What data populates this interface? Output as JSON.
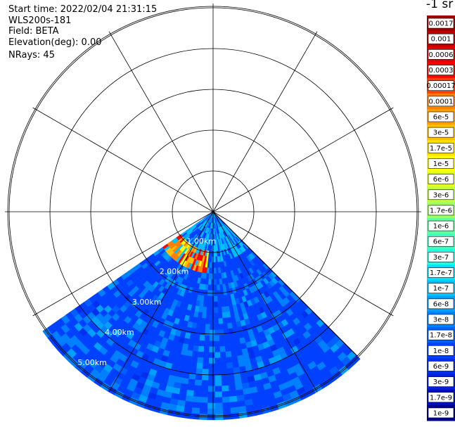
{
  "header": {
    "start_time": "Start time: 2022/02/04 21:31:15",
    "instrument": "WLS200s-181",
    "field": "Field: BETA",
    "elevation": "Elevation(deg): 0.00",
    "nrays": "NRays: 45"
  },
  "colorbar": {
    "unit_label": "-1 sr",
    "labels": [
      "0.0017",
      "0.001",
      "0.0006",
      "0.0003",
      "0.00017",
      "0.0001",
      "6e-5",
      "3e-5",
      "1.7e-5",
      "1e-5",
      "6e-6",
      "3e-6",
      "1.7e-6",
      "1e-6",
      "6e-7",
      "3e-7",
      "1.7e-7",
      "1e-7",
      "6e-8",
      "3e-8",
      "1.7e-8",
      "1e-8",
      "6e-9",
      "3e-9",
      "1.7e-9",
      "1e-9"
    ],
    "colors": [
      "#a00000",
      "#c00000",
      "#e00000",
      "#ff0000",
      "#ff4000",
      "#ff8000",
      "#ffa000",
      "#ffc000",
      "#ffe000",
      "#ffff00",
      "#e0ff20",
      "#c0ff40",
      "#a0ff60",
      "#60ffa0",
      "#40ffc0",
      "#20ffe0",
      "#00e0ff",
      "#00c0ff",
      "#00a0ff",
      "#0080ff",
      "#0060ff",
      "#0040ff",
      "#0030ee",
      "#0020dd",
      "#0010bb",
      "#000090"
    ]
  },
  "chart_data": {
    "type": "heatmap",
    "projection": "polar PPI scan",
    "range_rings_km": [
      1,
      2,
      3,
      4,
      5
    ],
    "ring_labels": [
      "1.00km",
      "2.00km",
      "3.00km",
      "4.00km",
      "5.00km"
    ],
    "spoke_interval_deg": 30,
    "sector_azimuth_deg": [
      135,
      235
    ],
    "max_range_km": 5.0,
    "elevation_deg": 0.0,
    "nrays": 45,
    "colormap": "log scale, 1e-9 to 0.0017",
    "background_value": "1e-8",
    "features": [
      {
        "description": "high backscatter arc near 1.0-1.5 km",
        "az_range_deg": [
          185,
          235
        ],
        "range_km": [
          0.9,
          1.6
        ],
        "value": "0.0003"
      },
      {
        "description": "near-range returns",
        "az_range_deg": [
          135,
          235
        ],
        "range_km": [
          0.0,
          1.2
        ],
        "value": "1e-7"
      }
    ]
  }
}
